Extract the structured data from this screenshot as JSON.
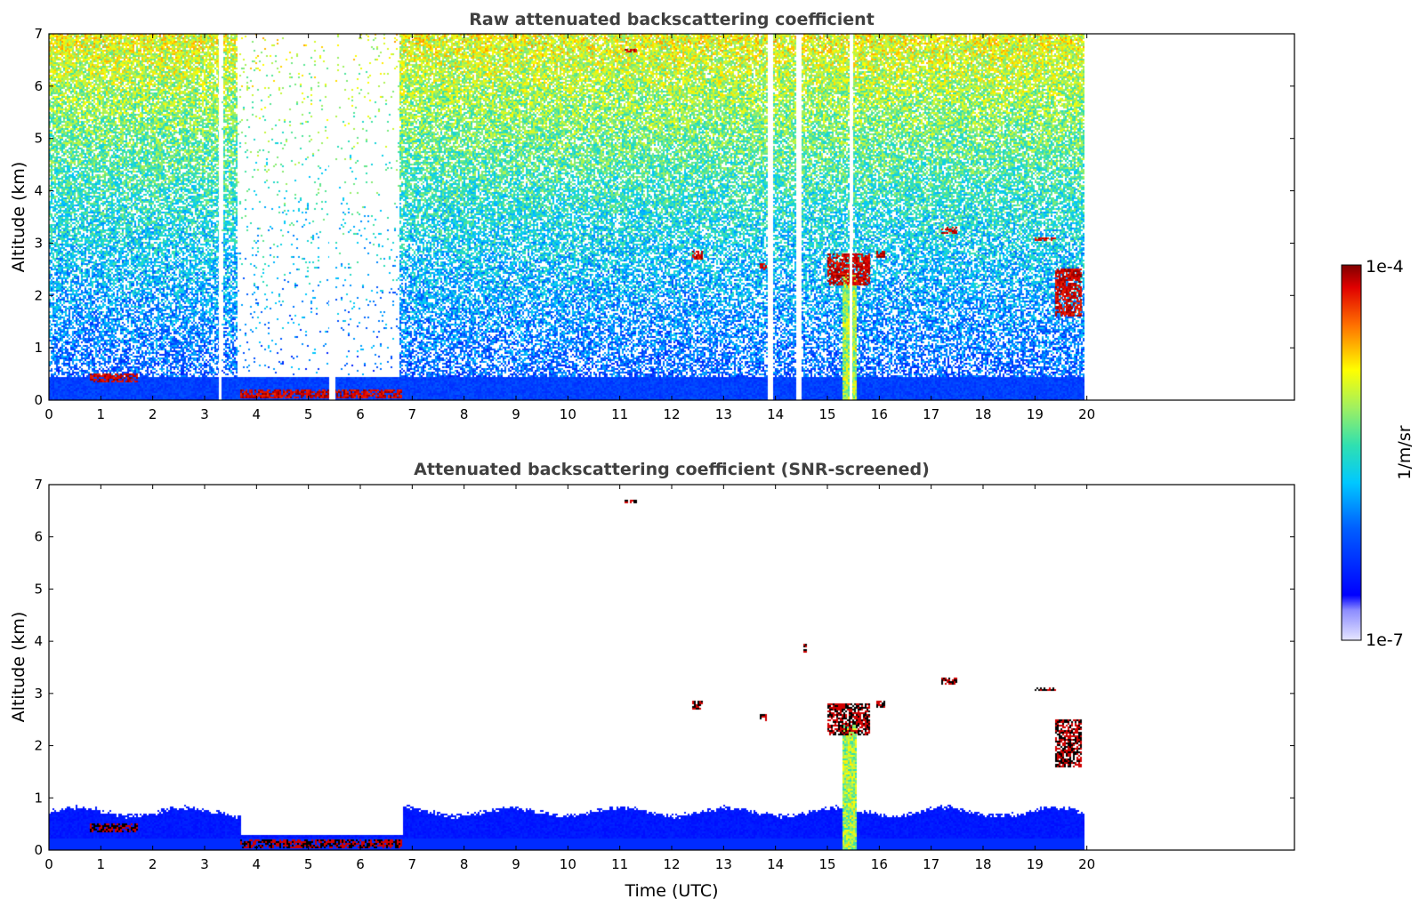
{
  "chart_data": [
    {
      "type": "heatmap",
      "title": "Raw attenuated backscattering coefficient",
      "xlabel": "",
      "ylabel": "Altitude (km)",
      "xlim": [
        0,
        24
      ],
      "ylim": [
        0,
        7
      ],
      "x_ticks": [
        "0",
        "1",
        "2",
        "3",
        "4",
        "5",
        "6",
        "7",
        "8",
        "9",
        "10",
        "11",
        "12",
        "13",
        "14",
        "15",
        "16",
        "17",
        "18",
        "19",
        "20"
      ],
      "y_ticks": [
        "0",
        "1",
        "2",
        "3",
        "4",
        "5",
        "6",
        "7"
      ],
      "data_end_time": 19.95,
      "screened": false,
      "features": [
        {
          "name": "boundary layer",
          "x": [
            0,
            19.95
          ],
          "y": [
            0,
            0.5
          ]
        },
        {
          "name": "low cloud",
          "x": [
            3.7,
            6.8
          ],
          "y": [
            0.05,
            0.2
          ]
        },
        {
          "name": "low cloud",
          "x": [
            0.8,
            1.7
          ],
          "y": [
            0.35,
            0.5
          ]
        },
        {
          "name": "precipitation shaft",
          "x": [
            15.3,
            15.55
          ],
          "y": [
            0,
            2.4
          ]
        },
        {
          "name": "cloud",
          "x": [
            15.0,
            15.8
          ],
          "y": [
            2.2,
            2.8
          ]
        },
        {
          "name": "cloud",
          "x": [
            17.2,
            17.5
          ],
          "y": [
            3.2,
            3.3
          ]
        },
        {
          "name": "cloud",
          "x": [
            19.0,
            19.4
          ],
          "y": [
            3.05,
            3.1
          ]
        },
        {
          "name": "cloud",
          "x": [
            19.4,
            19.9
          ],
          "y": [
            1.6,
            2.5
          ]
        },
        {
          "name": "cloud",
          "x": [
            12.4,
            12.6
          ],
          "y": [
            2.7,
            2.85
          ]
        },
        {
          "name": "cloud",
          "x": [
            13.7,
            13.8
          ],
          "y": [
            2.5,
            2.6
          ]
        },
        {
          "name": "cloud",
          "x": [
            15.95,
            16.1
          ],
          "y": [
            2.75,
            2.85
          ]
        },
        {
          "name": "cloud",
          "x": [
            11.1,
            11.3
          ],
          "y": [
            6.65,
            6.7
          ]
        }
      ],
      "gaps": [
        [
          3.27,
          3.33
        ],
        [
          3.6,
          6.75
        ],
        [
          5.4,
          5.52
        ],
        [
          13.85,
          13.95
        ],
        [
          14.4,
          14.5
        ],
        [
          15.42,
          15.48
        ]
      ]
    },
    {
      "type": "heatmap",
      "title": "Attenuated backscattering coefficient (SNR-screened)",
      "xlabel": "Time (UTC)",
      "ylabel": "Altitude (km)",
      "xlim": [
        0,
        24
      ],
      "ylim": [
        0,
        7
      ],
      "x_ticks": [
        "0",
        "1",
        "2",
        "3",
        "4",
        "5",
        "6",
        "7",
        "8",
        "9",
        "10",
        "11",
        "12",
        "13",
        "14",
        "15",
        "16",
        "17",
        "18",
        "19",
        "20"
      ],
      "y_ticks": [
        "0",
        "1",
        "2",
        "3",
        "4",
        "5",
        "6",
        "7"
      ],
      "data_end_time": 19.95,
      "screened": true,
      "features": [
        {
          "name": "boundary layer",
          "x": [
            0,
            19.95
          ],
          "y": [
            0,
            0.85
          ]
        },
        {
          "name": "low cloud",
          "x": [
            3.7,
            6.8
          ],
          "y": [
            0.05,
            0.2
          ]
        },
        {
          "name": "low cloud",
          "x": [
            0.8,
            1.7
          ],
          "y": [
            0.35,
            0.5
          ]
        },
        {
          "name": "precipitation shaft",
          "x": [
            15.3,
            15.55
          ],
          "y": [
            0,
            2.4
          ]
        },
        {
          "name": "cloud",
          "x": [
            15.0,
            15.8
          ],
          "y": [
            2.2,
            2.8
          ]
        },
        {
          "name": "cloud",
          "x": [
            17.2,
            17.5
          ],
          "y": [
            3.2,
            3.3
          ]
        },
        {
          "name": "cloud",
          "x": [
            19.0,
            19.4
          ],
          "y": [
            3.05,
            3.1
          ]
        },
        {
          "name": "cloud",
          "x": [
            19.4,
            19.9
          ],
          "y": [
            1.6,
            2.5
          ]
        },
        {
          "name": "cloud",
          "x": [
            12.4,
            12.6
          ],
          "y": [
            2.7,
            2.85
          ]
        },
        {
          "name": "cloud",
          "x": [
            13.7,
            13.8
          ],
          "y": [
            2.5,
            2.6
          ]
        },
        {
          "name": "cloud",
          "x": [
            15.95,
            16.1
          ],
          "y": [
            2.75,
            2.85
          ]
        },
        {
          "name": "cloud",
          "x": [
            11.1,
            11.3
          ],
          "y": [
            6.65,
            6.7
          ]
        },
        {
          "name": "cloud",
          "x": [
            14.55,
            14.6
          ],
          "y": [
            3.8,
            3.95
          ]
        }
      ]
    }
  ],
  "colorbar": {
    "label": "1/m/sr",
    "min_label": "1e-7",
    "max_label": "1e-4",
    "scale": "log",
    "colormap": "jet"
  }
}
